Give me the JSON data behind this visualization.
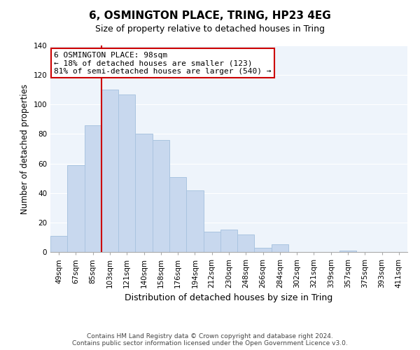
{
  "title": "6, OSMINGTON PLACE, TRING, HP23 4EG",
  "subtitle": "Size of property relative to detached houses in Tring",
  "xlabel": "Distribution of detached houses by size in Tring",
  "ylabel": "Number of detached properties",
  "bar_labels": [
    "49sqm",
    "67sqm",
    "85sqm",
    "103sqm",
    "121sqm",
    "140sqm",
    "158sqm",
    "176sqm",
    "194sqm",
    "212sqm",
    "230sqm",
    "248sqm",
    "266sqm",
    "284sqm",
    "302sqm",
    "321sqm",
    "339sqm",
    "357sqm",
    "375sqm",
    "393sqm",
    "411sqm"
  ],
  "bar_values": [
    11,
    59,
    86,
    110,
    107,
    80,
    76,
    51,
    42,
    14,
    15,
    12,
    3,
    5,
    0,
    0,
    0,
    1,
    0,
    0,
    0
  ],
  "bar_color": "#c8d8ee",
  "bar_edge_color": "#aac4e0",
  "vline_color": "#cc0000",
  "vline_index": 3,
  "ylim": [
    0,
    140
  ],
  "yticks": [
    0,
    20,
    40,
    60,
    80,
    100,
    120,
    140
  ],
  "annotation_title": "6 OSMINGTON PLACE: 98sqm",
  "annotation_line1": "← 18% of detached houses are smaller (123)",
  "annotation_line2": "81% of semi-detached houses are larger (540) →",
  "annotation_box_color": "#ffffff",
  "annotation_box_edge": "#cc0000",
  "footer_line1": "Contains HM Land Registry data © Crown copyright and database right 2024.",
  "footer_line2": "Contains public sector information licensed under the Open Government Licence v3.0.",
  "background_color": "#eef4fb",
  "grid_color": "#ffffff",
  "title_fontsize": 11,
  "subtitle_fontsize": 9,
  "ylabel_fontsize": 8.5,
  "xlabel_fontsize": 9,
  "tick_fontsize": 7.5,
  "footer_fontsize": 6.5,
  "annotation_fontsize": 8
}
